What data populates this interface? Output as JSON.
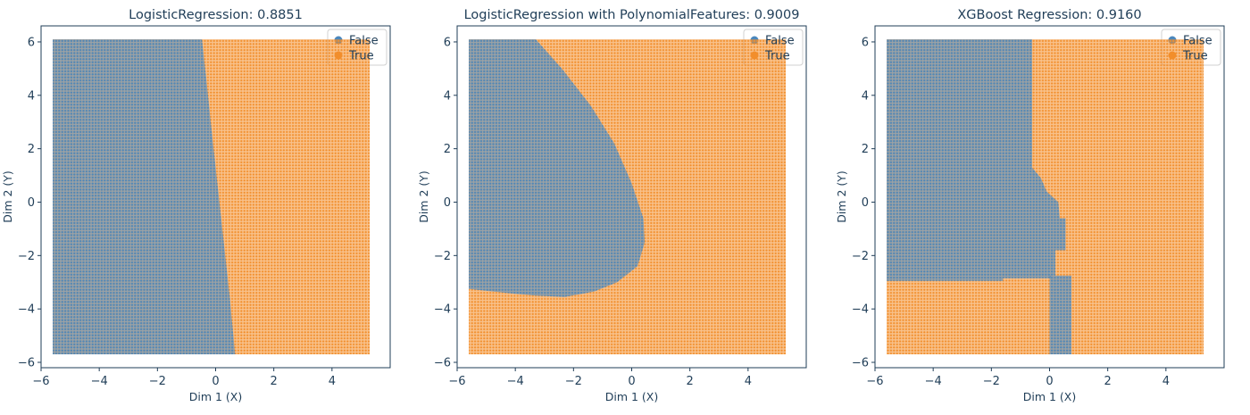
{
  "chart_data": [
    {
      "type": "scatter",
      "title": "LogisticRegression: 0.8851",
      "xlabel": "Dim 1 (X)",
      "ylabel": "Dim 2 (Y)",
      "xlim": [
        -6,
        6
      ],
      "ylim": [
        -6.2,
        6.6
      ],
      "xticks": [
        -6,
        -4,
        -2,
        0,
        2,
        4
      ],
      "yticks": [
        -6,
        -4,
        -2,
        0,
        2,
        4,
        6
      ],
      "grid": false,
      "legend_position": "top-right",
      "x_range": [
        -5.6,
        5.3
      ],
      "y_range": [
        -5.7,
        6.1
      ],
      "series": [
        {
          "name": "False",
          "color": "#4c88bd"
        },
        {
          "name": "True",
          "color": "#f28e2b"
        }
      ],
      "boundary": {
        "kind": "line",
        "description": "predicted True to the right of the boundary",
        "points": [
          [
            -5.7,
            0.67
          ],
          [
            -3.5,
            0.48
          ],
          [
            -1.5,
            0.28
          ],
          [
            0.5,
            0.08
          ],
          [
            2.5,
            -0.12
          ],
          [
            4.5,
            -0.31
          ],
          [
            6.1,
            -0.47
          ]
        ]
      }
    },
    {
      "type": "scatter",
      "title": "LogisticRegression with PolynomialFeatures: 0.9009",
      "xlabel": "Dim 1 (X)",
      "ylabel": "Dim 2 (Y)",
      "xlim": [
        -6,
        6
      ],
      "ylim": [
        -6.2,
        6.6
      ],
      "xticks": [
        -6,
        -4,
        -2,
        0,
        2,
        4
      ],
      "yticks": [
        -6,
        -4,
        -2,
        0,
        2,
        4,
        6
      ],
      "grid": false,
      "legend_position": "top-right",
      "x_range": [
        -5.6,
        5.3
      ],
      "y_range": [
        -5.7,
        6.1
      ],
      "series": [
        {
          "name": "False",
          "color": "#4c88bd"
        },
        {
          "name": "True",
          "color": "#f28e2b"
        }
      ],
      "boundary": {
        "kind": "region",
        "description": "predicted False inside the region",
        "polygon": [
          [
            -5.6,
            6.1
          ],
          [
            -3.3,
            6.1
          ],
          [
            -2.4,
            5.0
          ],
          [
            -1.4,
            3.6
          ],
          [
            -0.6,
            2.2
          ],
          [
            0.0,
            0.7
          ],
          [
            0.4,
            -0.6
          ],
          [
            0.45,
            -1.5
          ],
          [
            0.2,
            -2.4
          ],
          [
            -0.5,
            -3.0
          ],
          [
            -1.3,
            -3.35
          ],
          [
            -2.3,
            -3.55
          ],
          [
            -3.3,
            -3.5
          ],
          [
            -4.3,
            -3.4
          ],
          [
            -5.6,
            -3.25
          ]
        ]
      }
    },
    {
      "type": "scatter",
      "title": "XGBoost Regression: 0.9160",
      "xlabel": "Dim 1 (X)",
      "ylabel": "Dim 2 (Y)",
      "xlim": [
        -6,
        6
      ],
      "ylim": [
        -6.2,
        6.6
      ],
      "xticks": [
        -6,
        -4,
        -2,
        0,
        2,
        4
      ],
      "yticks": [
        -6,
        -4,
        -2,
        0,
        2,
        4,
        6
      ],
      "grid": false,
      "legend_position": "top-right",
      "x_range": [
        -5.6,
        5.3
      ],
      "y_range": [
        -5.7,
        6.1
      ],
      "series": [
        {
          "name": "False",
          "color": "#4c88bd"
        },
        {
          "name": "True",
          "color": "#f28e2b"
        }
      ],
      "boundary": {
        "kind": "regions",
        "description": "predicted False inside the regions",
        "polygons": [
          [
            [
              -5.6,
              6.1
            ],
            [
              -0.6,
              6.1
            ],
            [
              -0.6,
              1.3
            ],
            [
              -0.3,
              0.9
            ],
            [
              -0.1,
              0.4
            ],
            [
              0.3,
              0.0
            ],
            [
              0.35,
              -0.6
            ],
            [
              0.55,
              -0.6
            ],
            [
              0.55,
              -1.8
            ],
            [
              0.2,
              -1.8
            ],
            [
              0.2,
              -2.75
            ],
            [
              0.05,
              -2.75
            ],
            [
              0.05,
              -2.85
            ],
            [
              -1.6,
              -2.85
            ],
            [
              -1.6,
              -2.95
            ],
            [
              -5.6,
              -2.95
            ]
          ],
          [
            [
              0.0,
              -2.75
            ],
            [
              0.75,
              -2.75
            ],
            [
              0.75,
              -5.7
            ],
            [
              0.0,
              -5.7
            ]
          ]
        ]
      }
    }
  ]
}
